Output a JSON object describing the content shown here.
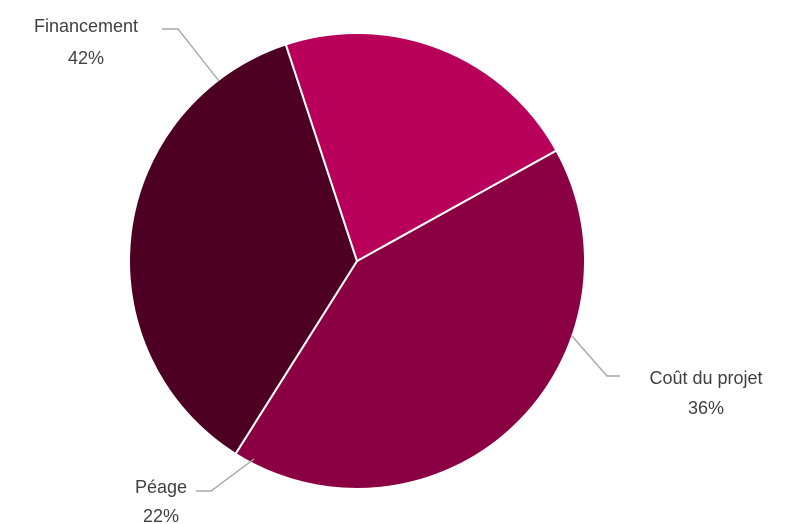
{
  "chart_data": {
    "type": "pie",
    "title": "",
    "slices": [
      {
        "label": "Financement",
        "value": 42,
        "display": "42%",
        "color": "#8b0042"
      },
      {
        "label": "Coût du projet",
        "value": 36,
        "display": "36%",
        "color": "#4e0023"
      },
      {
        "label": "Péage",
        "value": 22,
        "display": "22%",
        "color": "#b8005a"
      }
    ],
    "legend": "none",
    "data_labels": "outside with leader lines"
  }
}
